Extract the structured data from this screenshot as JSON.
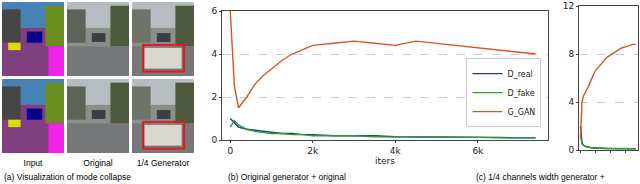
{
  "panel_a": {
    "labels": [
      "Input",
      "Original",
      "1/4 Generator"
    ]
  },
  "captions": [
    "(a) Visualization of mode collapse",
    "(b) Original generator + original",
    "(c) 1/4 channels width generator +"
  ],
  "chart_data": [
    {
      "type": "line",
      "x_label": "iters",
      "legend": "lower right",
      "grid": true,
      "x": [
        0,
        100,
        200,
        400,
        600,
        800,
        1000,
        1250,
        1500,
        1750,
        2000,
        2500,
        3000,
        3500,
        4000,
        4500,
        5000,
        5500,
        6000,
        6500,
        7000,
        7400
      ],
      "xlim": [
        -200,
        7700
      ],
      "xticks": [
        0,
        {
          "value": 2000,
          "label": "2k"
        },
        {
          "value": 4000,
          "label": "4k"
        },
        {
          "value": 6000,
          "label": "6k"
        }
      ],
      "ylim": [
        0,
        6
      ],
      "yticks": [
        0,
        2,
        4,
        6
      ],
      "series": [
        {
          "name": "D_real",
          "color": "#1f3c88",
          "values": [
            1.0,
            0.8,
            0.6,
            0.5,
            0.45,
            0.4,
            0.35,
            0.3,
            0.3,
            0.25,
            0.25,
            0.2,
            0.2,
            0.2,
            0.15,
            0.15,
            0.15,
            0.15,
            0.12,
            0.12,
            0.1,
            0.1
          ]
        },
        {
          "name": "D_fake",
          "color": "#2ca02c",
          "values": [
            0.6,
            0.9,
            0.7,
            0.5,
            0.4,
            0.35,
            0.3,
            0.3,
            0.25,
            0.25,
            0.2,
            0.2,
            0.2,
            0.15,
            0.15,
            0.15,
            0.12,
            0.12,
            0.12,
            0.1,
            0.1,
            0.1
          ]
        },
        {
          "name": "G_GAN",
          "color": "#d9541e",
          "values": [
            6.0,
            2.5,
            1.5,
            2.0,
            2.6,
            3.0,
            3.3,
            3.7,
            4.0,
            4.2,
            4.4,
            4.5,
            4.6,
            4.5,
            4.4,
            4.6,
            4.5,
            4.4,
            4.3,
            4.2,
            4.1,
            4.0
          ]
        }
      ]
    },
    {
      "type": "line",
      "grid": true,
      "tick_labels": "y",
      "x": [
        0,
        100,
        200,
        400,
        600,
        800,
        1000,
        1250,
        1500,
        1750,
        2000,
        2500,
        3000,
        3500,
        4000,
        4500,
        5000,
        5500,
        6000,
        6500,
        7000,
        7400
      ],
      "xlim": [
        -200,
        7700
      ],
      "xticks": [
        0,
        2000,
        4000,
        6000
      ],
      "ylim": [
        0,
        12
      ],
      "yticks": [
        0,
        4,
        8,
        12
      ],
      "series": [
        {
          "name": "D_real",
          "color": "#1f3c88",
          "values": [
            2.0,
            1.0,
            0.6,
            0.4,
            0.3,
            0.3,
            0.25,
            0.2,
            0.2,
            0.2,
            0.15,
            0.15,
            0.15,
            0.12,
            0.12,
            0.12,
            0.1,
            0.1,
            0.1,
            0.1,
            0.1,
            0.1
          ]
        },
        {
          "name": "D_fake",
          "color": "#2ca02c",
          "values": [
            1.2,
            0.8,
            0.5,
            0.4,
            0.3,
            0.25,
            0.25,
            0.2,
            0.2,
            0.15,
            0.15,
            0.15,
            0.12,
            0.12,
            0.12,
            0.1,
            0.1,
            0.1,
            0.1,
            0.1,
            0.1,
            0.1
          ]
        },
        {
          "name": "G_GAN",
          "color": "#d9541e",
          "values": [
            1.0,
            3.0,
            4.0,
            4.5,
            4.8,
            5.0,
            5.2,
            5.6,
            6.0,
            6.3,
            6.6,
            7.0,
            7.4,
            7.7,
            7.9,
            8.1,
            8.3,
            8.5,
            8.6,
            8.7,
            8.8,
            8.8
          ]
        }
      ]
    }
  ]
}
